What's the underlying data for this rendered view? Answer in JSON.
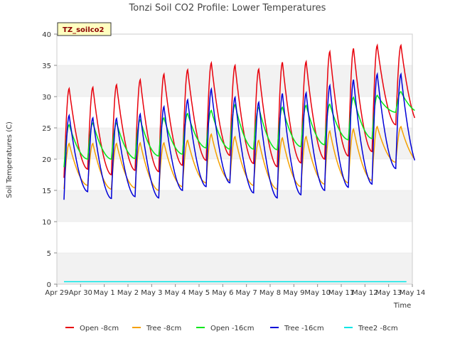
{
  "chart_data": {
    "type": "line",
    "title": "Tonzi Soil CO2 Profile: Lower Temperatures",
    "xlabel": "Time",
    "ylabel": "Soil Temperatures (C)",
    "ylim": [
      0,
      40
    ],
    "yticks": [
      0,
      5,
      10,
      15,
      20,
      25,
      30,
      35,
      40
    ],
    "xlim": [
      0,
      15
    ],
    "xticks": [
      {
        "x": 0,
        "label": "Apr 29"
      },
      {
        "x": 1,
        "label": "Apr 30"
      },
      {
        "x": 2,
        "label": "May 1"
      },
      {
        "x": 3,
        "label": "May 2"
      },
      {
        "x": 4,
        "label": "May 3"
      },
      {
        "x": 5,
        "label": "May 4"
      },
      {
        "x": 6,
        "label": "May 5"
      },
      {
        "x": 7,
        "label": "May 6"
      },
      {
        "x": 8,
        "label": "May 7"
      },
      {
        "x": 9,
        "label": "May 8"
      },
      {
        "x": 10,
        "label": "May 9"
      },
      {
        "x": 11,
        "label": "May 10"
      },
      {
        "x": 12,
        "label": "May 11"
      },
      {
        "x": 13,
        "label": "May 12"
      },
      {
        "x": 14,
        "label": "May 13"
      },
      {
        "x": 15,
        "label": "May 14"
      }
    ],
    "grid": "horizontal bands",
    "legend_position": "bottom",
    "tag": "TZ_soilco2",
    "series": [
      {
        "name": "Open -8cm",
        "color": "#e8000b",
        "x_start": 0.3,
        "days": 15,
        "min": [
          17.0,
          18.4,
          17.5,
          18.2,
          18.0,
          19.0,
          19.8,
          20.6,
          19.3,
          18.8,
          19.4,
          20.0,
          20.5,
          21.2,
          25.5
        ],
        "max": [
          31.3,
          31.5,
          31.9,
          32.7,
          33.6,
          34.3,
          35.4,
          35.0,
          34.4,
          35.5,
          35.6,
          37.2,
          37.7,
          38.2,
          38.2
        ]
      },
      {
        "name": "Tree -8cm",
        "color": "#f5a000",
        "x_start": 0.3,
        "days": 15,
        "min": [
          15.2,
          15.8,
          15.2,
          15.4,
          15.0,
          15.6,
          16.2,
          16.6,
          15.8,
          15.2,
          15.6,
          16.0,
          16.2,
          16.6,
          19.5
        ],
        "max": [
          22.5,
          22.5,
          22.5,
          22.6,
          22.6,
          23.0,
          24.0,
          23.6,
          23.0,
          23.4,
          23.6,
          24.5,
          24.8,
          25.2,
          25.2
        ]
      },
      {
        "name": "Open -16cm",
        "color": "#00e81a",
        "x_start": 0.3,
        "days": 15,
        "min": [
          18.7,
          20.0,
          20.0,
          20.1,
          20.5,
          20.8,
          21.8,
          21.6,
          21.6,
          21.5,
          22.0,
          22.3,
          23.1,
          23.3,
          27.5
        ],
        "max": [
          25.5,
          25.8,
          25.8,
          26.3,
          26.6,
          27.3,
          27.8,
          28.7,
          28.3,
          28.3,
          28.6,
          28.8,
          29.9,
          30.2,
          30.8
        ]
      },
      {
        "name": "Tree -16cm",
        "color": "#0000d8",
        "x_start": 0.3,
        "days": 15,
        "min": [
          13.5,
          14.8,
          13.7,
          14.0,
          13.8,
          15.0,
          15.6,
          16.2,
          14.6,
          13.8,
          14.3,
          15.0,
          15.5,
          16.0,
          18.5
        ],
        "max": [
          27.0,
          26.6,
          26.5,
          27.2,
          28.4,
          29.5,
          31.2,
          29.9,
          29.1,
          30.5,
          30.6,
          31.8,
          32.7,
          33.6,
          33.6
        ]
      },
      {
        "name": "Tree2 -8cm",
        "color": "#00e5e5",
        "x_start": 0.3,
        "x_end": 14.75,
        "constant": 0.4
      }
    ]
  }
}
